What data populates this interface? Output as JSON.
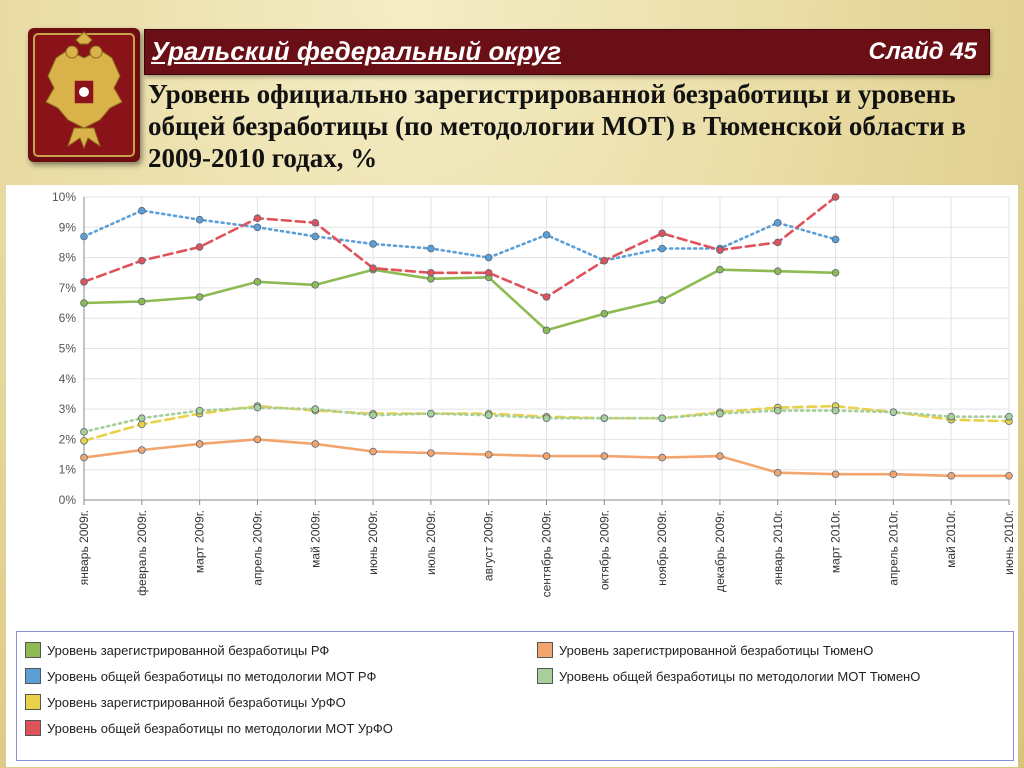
{
  "header": {
    "region": "Уральский федеральный округ",
    "slide": "Слайд 45"
  },
  "title": "Уровень официально зарегистрированной безработицы и уровень общей безработицы (по методологии МОТ) в Тюменской области в 2009-2010 годах, %",
  "icons": {
    "emblem": "russian-coat-of-arms-icon"
  },
  "chart_data": {
    "type": "line",
    "categories": [
      "январь 2009г.",
      "февраль 2009г.",
      "март 2009г.",
      "апрель 2009г.",
      "май 2009г.",
      "июнь 2009г.",
      "июль 2009г.",
      "август 2009г.",
      "сентябрь 2009г.",
      "октябрь 2009г.",
      "ноябрь 2009г.",
      "декабрь 2009г.",
      "январь 2010г.",
      "март 2010г.",
      "апрель 2010г.",
      "май 2010г.",
      "июнь 2010г."
    ],
    "yticks": [
      "0%",
      "1%",
      "2%",
      "3%",
      "4%",
      "5%",
      "6%",
      "7%",
      "8%",
      "9%",
      "10%"
    ],
    "ylim": [
      0,
      10
    ],
    "grid": true,
    "legend_position": "bottom",
    "series": [
      {
        "name": "Уровень зарегистрированной безработицы РФ",
        "color": "#8dbb52",
        "style": "solid",
        "values": [
          6.5,
          6.55,
          6.7,
          7.2,
          7.1,
          7.6,
          7.3,
          7.35,
          5.6,
          6.15,
          6.6,
          7.6,
          7.55,
          7.5,
          null,
          null,
          null
        ]
      },
      {
        "name": "Уровень общей безработицы по методологии МОТ РФ",
        "color": "#5b9fd6",
        "style": "dotted",
        "values": [
          8.7,
          9.55,
          9.25,
          9.0,
          8.7,
          8.45,
          8.3,
          8.0,
          8.75,
          7.9,
          8.3,
          8.3,
          9.15,
          8.6,
          null,
          null,
          null
        ]
      },
      {
        "name": "Уровень зарегистрированной безработицы УрФО",
        "color": "#e8d24a",
        "style": "dashed",
        "values": [
          1.95,
          2.5,
          2.85,
          3.1,
          2.95,
          2.85,
          2.85,
          2.85,
          2.75,
          2.7,
          2.7,
          2.9,
          3.05,
          3.1,
          2.9,
          2.65,
          2.6
        ]
      },
      {
        "name": "Уровень общей безработицы по методологии МОТ УрФО",
        "color": "#e0525a",
        "style": "dashed",
        "values": [
          7.2,
          7.9,
          8.35,
          9.3,
          9.15,
          7.65,
          7.5,
          7.5,
          6.7,
          7.9,
          8.8,
          8.25,
          8.5,
          10.0,
          null,
          null,
          null
        ]
      },
      {
        "name": "Уровень зарегистрированной безработицы  ТюменО",
        "color": "#f4a46e",
        "style": "solid",
        "values": [
          1.4,
          1.65,
          1.85,
          2.0,
          1.85,
          1.6,
          1.55,
          1.5,
          1.45,
          1.45,
          1.4,
          1.45,
          0.9,
          0.85,
          0.85,
          0.8,
          0.8
        ]
      },
      {
        "name": "Уровень общей безработицы по методологии МОТ  ТюменО",
        "color": "#a6cf9a",
        "style": "dotted",
        "values": [
          2.25,
          2.7,
          2.95,
          3.05,
          3.0,
          2.8,
          2.85,
          2.8,
          2.7,
          2.7,
          2.7,
          2.85,
          2.95,
          2.95,
          2.9,
          2.75,
          2.75
        ]
      }
    ]
  }
}
